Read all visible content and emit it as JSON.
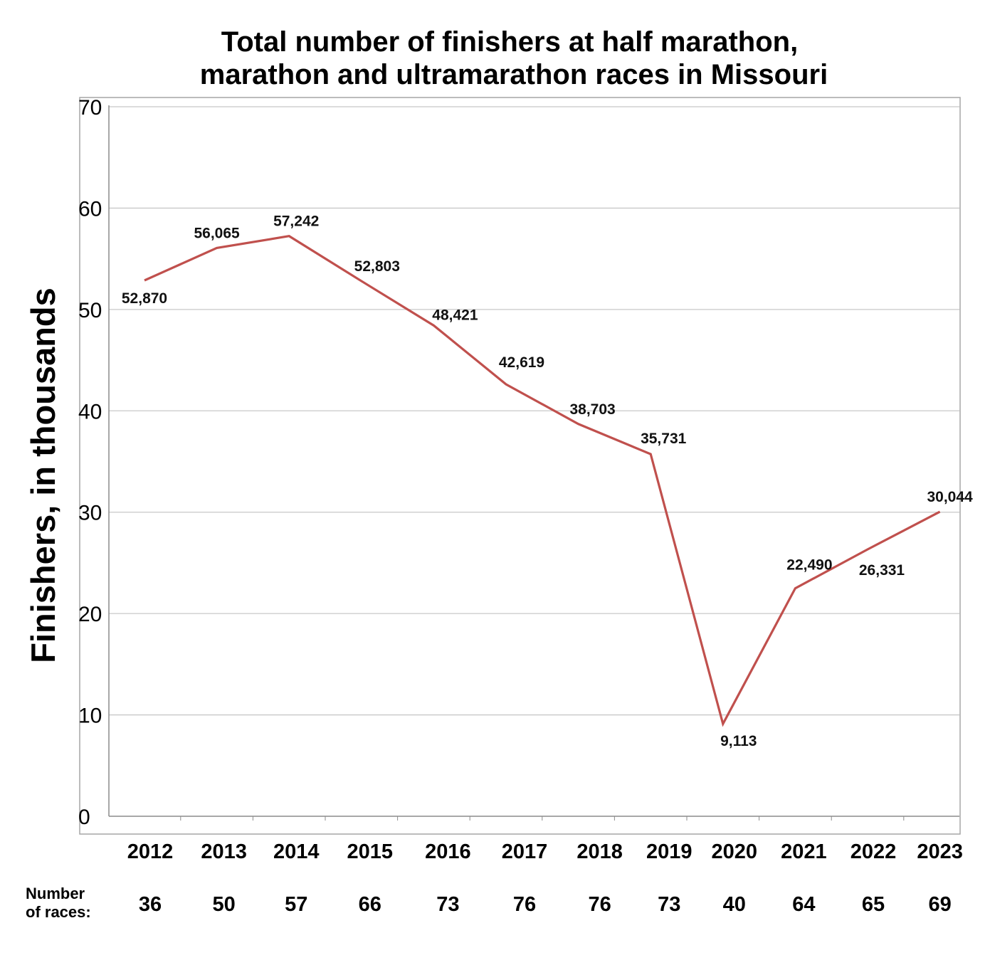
{
  "chart_data": {
    "type": "line",
    "title_lines": [
      "Total number of finishers at half marathon,",
      "marathon and ultramarathon races in Missouri"
    ],
    "ylabel": "Finishers, in thousands",
    "xlabel": "",
    "ylim": [
      0,
      70
    ],
    "yticks": [
      "0",
      "10",
      "20",
      "30",
      "40",
      "50",
      "60",
      "70"
    ],
    "grid": true,
    "line_color": "#c0504d",
    "categories": [
      "2012",
      "2013",
      "2014",
      "2015",
      "2016",
      "2017",
      "2018",
      "2019",
      "2020",
      "2021",
      "2022",
      "2023"
    ],
    "series": [
      {
        "name": "Finishers",
        "values": [
          52.87,
          56.065,
          57.242,
          52.803,
          48.421,
          42.619,
          38.703,
          35.731,
          9.113,
          22.49,
          26.331,
          30.044
        ],
        "labels": [
          "52,870",
          "56,065",
          "57,242",
          "52,803",
          "48,421",
          "42,619",
          "38,703",
          "35,731",
          "9,113",
          "22,490",
          "26,331",
          "30,044"
        ]
      }
    ],
    "races_label_lines": [
      "Number",
      "of races:"
    ],
    "races": [
      "36",
      "50",
      "57",
      "66",
      "73",
      "76",
      "76",
      "73",
      "40",
      "64",
      "65",
      "69"
    ]
  }
}
